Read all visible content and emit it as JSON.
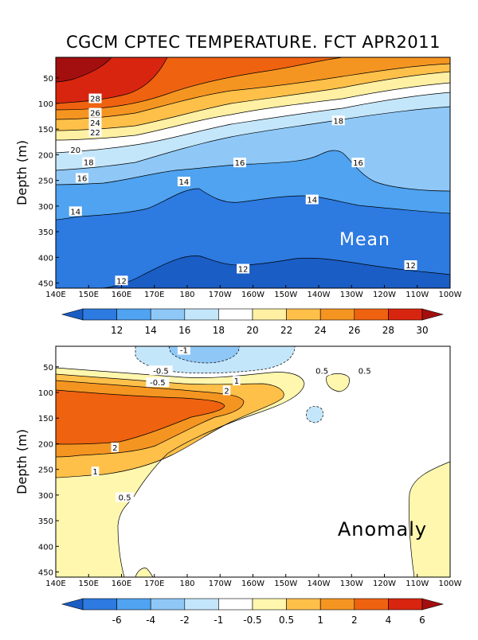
{
  "title": "CGCM CPTEC TEMPERATURE. FCT APR2011",
  "chart_data": [
    {
      "type": "heatmap",
      "name": "mean",
      "panel_label": "Mean",
      "ylabel": "Depth (m)",
      "xlabel": "",
      "x_ticks": [
        "140E",
        "150E",
        "160E",
        "170E",
        "180",
        "170W",
        "160W",
        "150W",
        "140W",
        "130W",
        "120W",
        "110W",
        "100W"
      ],
      "y_ticks": [
        "50",
        "100",
        "150",
        "200",
        "250",
        "300",
        "350",
        "400",
        "450"
      ],
      "xlim": [
        140,
        260
      ],
      "ylim": [
        460,
        10
      ],
      "colorbar_labels": [
        "12",
        "14",
        "16",
        "18",
        "20",
        "22",
        "24",
        "26",
        "28",
        "30"
      ],
      "colorbar_colors": [
        "#1a5dc4",
        "#2d7ae0",
        "#4fa3f0",
        "#8fc8f7",
        "#c4e6fb",
        "#ffffff",
        "#fff0a3",
        "#ffc04a",
        "#f59521",
        "#ef6210",
        "#d8250f",
        "#a30f0f"
      ],
      "contour_labels": [
        {
          "text": "28",
          "lon": 152,
          "depth": 90
        },
        {
          "text": "26",
          "lon": 152,
          "depth": 118
        },
        {
          "text": "24",
          "lon": 152,
          "depth": 137
        },
        {
          "text": "22",
          "lon": 152,
          "depth": 156
        },
        {
          "text": "20",
          "lon": 146,
          "depth": 190
        },
        {
          "text": "18",
          "lon": 150,
          "depth": 214
        },
        {
          "text": "16",
          "lon": 148,
          "depth": 245
        },
        {
          "text": "14",
          "lon": 146,
          "depth": 310
        },
        {
          "text": "12",
          "lon": 160,
          "depth": 445
        },
        {
          "text": "14",
          "lon": 179,
          "depth": 252
        },
        {
          "text": "16",
          "lon": 196,
          "depth": 215
        },
        {
          "text": "18",
          "lon": 226,
          "depth": 133
        },
        {
          "text": "16",
          "lon": 232,
          "depth": 215
        },
        {
          "text": "14",
          "lon": 218,
          "depth": 287
        },
        {
          "text": "12",
          "lon": 197,
          "depth": 422
        },
        {
          "text": "12",
          "lon": 248,
          "depth": 415
        }
      ]
    },
    {
      "type": "heatmap",
      "name": "anomaly",
      "panel_label": "Anomaly",
      "ylabel": "Depth (m)",
      "xlabel": "",
      "x_ticks": [
        "140E",
        "150E",
        "160E",
        "170E",
        "180",
        "170W",
        "160W",
        "150W",
        "140W",
        "130W",
        "120W",
        "110W",
        "100W"
      ],
      "y_ticks": [
        "50",
        "100",
        "150",
        "200",
        "250",
        "300",
        "350",
        "400",
        "450"
      ],
      "xlim": [
        140,
        260
      ],
      "ylim": [
        460,
        10
      ],
      "colorbar_labels": [
        "-6",
        "-4",
        "-2",
        "-1",
        "-0.5",
        "0.5",
        "1",
        "2",
        "4",
        "6"
      ],
      "colorbar_colors": [
        "#1a5dc4",
        "#2d7ae0",
        "#4fa3f0",
        "#8fc8f7",
        "#c4e6fb",
        "#ffffff",
        "#fff7ae",
        "#ffc04a",
        "#f59521",
        "#ef6210",
        "#d8250f",
        "#a30f0f"
      ],
      "contour_labels": [
        {
          "text": "-1",
          "lon": 179,
          "depth": 17
        },
        {
          "text": "-0.5",
          "lon": 172,
          "depth": 57
        },
        {
          "text": "-0.5",
          "lon": 171,
          "depth": 80
        },
        {
          "text": "0.5",
          "lon": 221,
          "depth": 57
        },
        {
          "text": "0.5",
          "lon": 234,
          "depth": 57
        },
        {
          "text": "1",
          "lon": 195,
          "depth": 77
        },
        {
          "text": "2",
          "lon": 192,
          "depth": 96
        },
        {
          "text": "2",
          "lon": 158,
          "depth": 207
        },
        {
          "text": "1",
          "lon": 152,
          "depth": 254
        },
        {
          "text": "0.5",
          "lon": 161,
          "depth": 304
        }
      ]
    }
  ]
}
